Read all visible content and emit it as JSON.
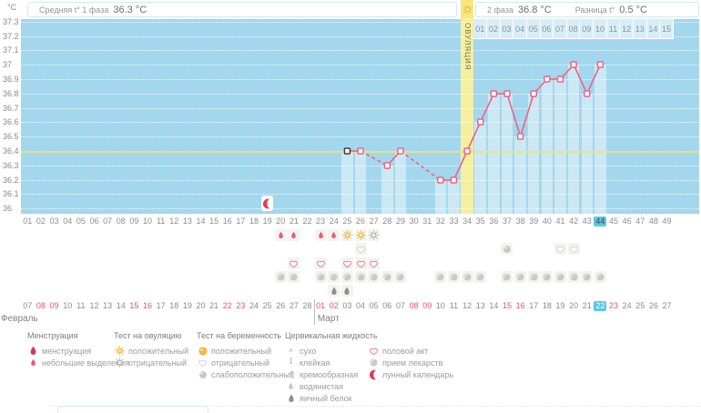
{
  "header": {
    "unit_label": "°C",
    "phase1": {
      "label": "Средняя t° 1 фаза",
      "value": "36.3 °C"
    },
    "phase2": {
      "label": "2 фаза",
      "value": "36.8 °C"
    },
    "diff": {
      "label": "Разница t°",
      "value": "0.5 °C"
    },
    "ovulation_label": "ОВУЛЯЦИЯ"
  },
  "colors": {
    "chart_bg": "#a3d7ed",
    "bar": "#cde9f7",
    "ovulation_band": "#f5efa0",
    "coverline": "#ece27a",
    "line": "#ee6286",
    "red_date": "#f0506e",
    "today_highlight": "#5cc5e9",
    "axis_text": "#8c8c8c"
  },
  "chart_data": {
    "type": "line",
    "ylabel": "°C",
    "ylim": [
      36.0,
      37.3
    ],
    "ytick_step": 0.1,
    "yticks": [
      "37.3",
      "37.2",
      "37.1",
      "37",
      "36.9",
      "36.8",
      "36.7",
      "36.6",
      "36.5",
      "36.4",
      "36.3",
      "36.2",
      "36.1",
      "36"
    ],
    "x_days": 49,
    "day_labels": [
      "01",
      "02",
      "03",
      "04",
      "05",
      "06",
      "07",
      "08",
      "09",
      "10",
      "11",
      "12",
      "13",
      "14",
      "15",
      "16",
      "17",
      "18",
      "19",
      "20",
      "21",
      "22",
      "23",
      "24",
      "25",
      "26",
      "27",
      "28",
      "29",
      "30",
      "31",
      "32",
      "33",
      "34",
      "35",
      "36",
      "37",
      "38",
      "39",
      "40",
      "41",
      "42",
      "43",
      "44",
      "45",
      "46",
      "47",
      "48",
      "49"
    ],
    "coverline_temp": 36.4,
    "ovulation_day": 34,
    "today_day": 44,
    "moon_day": 19,
    "points": [
      {
        "day": 25,
        "temp": 36.4,
        "first": true
      },
      {
        "day": 26,
        "temp": 36.4
      },
      {
        "day": 28,
        "temp": 36.3
      },
      {
        "day": 29,
        "temp": 36.4
      },
      {
        "day": 32,
        "temp": 36.2
      },
      {
        "day": 33,
        "temp": 36.2
      },
      {
        "day": 34,
        "temp": 36.4
      },
      {
        "day": 35,
        "temp": 36.6
      },
      {
        "day": 36,
        "temp": 36.8
      },
      {
        "day": 37,
        "temp": 36.8
      },
      {
        "day": 38,
        "temp": 36.5
      },
      {
        "day": 39,
        "temp": 36.8
      },
      {
        "day": 40,
        "temp": 36.9
      },
      {
        "day": 41,
        "temp": 36.9
      },
      {
        "day": 42,
        "temp": 37.0
      },
      {
        "day": 43,
        "temp": 36.8
      },
      {
        "day": 44,
        "temp": 37.0
      }
    ],
    "dashed_segments": [
      [
        26,
        28
      ],
      [
        29,
        32
      ]
    ],
    "bar_days": [
      25,
      26,
      28,
      29,
      32,
      33,
      35,
      36,
      37,
      38,
      39,
      40,
      41,
      42,
      43,
      44
    ],
    "dpo_labels": [
      "01",
      "02",
      "03",
      "04",
      "05",
      "06",
      "07",
      "08",
      "09",
      "10",
      "11",
      "12",
      "13",
      "14",
      "15"
    ]
  },
  "icon_rows": [
    {
      "name": "row-menses-ovulation-test",
      "cells": [
        {
          "day": 20,
          "icon": "spotting-icon"
        },
        {
          "day": 21,
          "icon": "spotting-icon"
        },
        {
          "day": 23,
          "icon": "spotting-icon"
        },
        {
          "day": 24,
          "icon": "spotting-icon"
        },
        {
          "day": 25,
          "icon": "ovulation-positive-icon"
        },
        {
          "day": 26,
          "icon": "ovulation-positive-icon"
        },
        {
          "day": 27,
          "icon": "ovulation-negative-icon"
        }
      ]
    },
    {
      "name": "row-pregnancy-test",
      "cells": [
        {
          "day": 26,
          "icon": "pregnancy-negative-icon"
        },
        {
          "day": 37,
          "icon": "pregnancy-weak-icon"
        },
        {
          "day": 41,
          "icon": "pregnancy-negative-icon"
        },
        {
          "day": 42,
          "icon": "pregnancy-negative-icon"
        }
      ]
    },
    {
      "name": "row-intercourse",
      "cells": [
        {
          "day": 21,
          "icon": "heart-icon"
        },
        {
          "day": 23,
          "icon": "heart-icon"
        },
        {
          "day": 25,
          "icon": "heart-icon"
        },
        {
          "day": 26,
          "icon": "heart-icon"
        },
        {
          "day": 27,
          "icon": "heart-icon"
        }
      ]
    },
    {
      "name": "row-medication",
      "cells": [
        {
          "day": 20,
          "icon": "pill-icon"
        },
        {
          "day": 21,
          "icon": "pill-icon"
        },
        {
          "day": 23,
          "icon": "pill-icon"
        },
        {
          "day": 24,
          "icon": "pill-icon"
        },
        {
          "day": 25,
          "icon": "pill-icon"
        },
        {
          "day": 26,
          "icon": "pill-icon"
        },
        {
          "day": 27,
          "icon": "pill-icon"
        },
        {
          "day": 28,
          "icon": "pill-icon"
        },
        {
          "day": 29,
          "icon": "pill-icon"
        },
        {
          "day": 32,
          "icon": "pill-icon"
        },
        {
          "day": 33,
          "icon": "pill-icon"
        },
        {
          "day": 34,
          "icon": "pill-icon"
        },
        {
          "day": 35,
          "icon": "pill-icon"
        },
        {
          "day": 37,
          "icon": "pill-icon"
        },
        {
          "day": 38,
          "icon": "pill-icon"
        },
        {
          "day": 39,
          "icon": "pill-icon"
        },
        {
          "day": 40,
          "icon": "pill-icon"
        },
        {
          "day": 41,
          "icon": "pill-icon"
        },
        {
          "day": 42,
          "icon": "pill-icon"
        },
        {
          "day": 43,
          "icon": "pill-icon"
        },
        {
          "day": 44,
          "icon": "pill-icon"
        }
      ]
    },
    {
      "name": "row-cervical-fluid",
      "cells": [
        {
          "day": 24,
          "icon": "eggwhite-icon"
        },
        {
          "day": 25,
          "icon": "eggwhite-icon"
        }
      ]
    }
  ],
  "dates": {
    "cells": [
      {
        "t": "07",
        "s": "n"
      },
      {
        "t": "08",
        "s": "r"
      },
      {
        "t": "09",
        "s": "r"
      },
      {
        "t": "10",
        "s": "n"
      },
      {
        "t": "11",
        "s": "n"
      },
      {
        "t": "12",
        "s": "n"
      },
      {
        "t": "13",
        "s": "n"
      },
      {
        "t": "14",
        "s": "n"
      },
      {
        "t": "15",
        "s": "r"
      },
      {
        "t": "16",
        "s": "r"
      },
      {
        "t": "17",
        "s": "n"
      },
      {
        "t": "18",
        "s": "n"
      },
      {
        "t": "19",
        "s": "n"
      },
      {
        "t": "20",
        "s": "n"
      },
      {
        "t": "21",
        "s": "n"
      },
      {
        "t": "22",
        "s": "r"
      },
      {
        "t": "23",
        "s": "r"
      },
      {
        "t": "24",
        "s": "n"
      },
      {
        "t": "25",
        "s": "n"
      },
      {
        "t": "26",
        "s": "n"
      },
      {
        "t": "27",
        "s": "n"
      },
      {
        "t": "28",
        "s": "n"
      },
      {
        "t": "01",
        "s": "r"
      },
      {
        "t": "02",
        "s": "r"
      },
      {
        "t": "03",
        "s": "n"
      },
      {
        "t": "04",
        "s": "n"
      },
      {
        "t": "05",
        "s": "n"
      },
      {
        "t": "06",
        "s": "n"
      },
      {
        "t": "07",
        "s": "n"
      },
      {
        "t": "08",
        "s": "r"
      },
      {
        "t": "09",
        "s": "r"
      },
      {
        "t": "10",
        "s": "n"
      },
      {
        "t": "11",
        "s": "n"
      },
      {
        "t": "12",
        "s": "n"
      },
      {
        "t": "13",
        "s": "n"
      },
      {
        "t": "14",
        "s": "n"
      },
      {
        "t": "15",
        "s": "r"
      },
      {
        "t": "16",
        "s": "r"
      },
      {
        "t": "17",
        "s": "n"
      },
      {
        "t": "18",
        "s": "n"
      },
      {
        "t": "19",
        "s": "n"
      },
      {
        "t": "20",
        "s": "n"
      },
      {
        "t": "21",
        "s": "n"
      },
      {
        "t": "22",
        "s": "h"
      },
      {
        "t": "23",
        "s": "r"
      },
      {
        "t": "24",
        "s": "n"
      },
      {
        "t": "25",
        "s": "n"
      },
      {
        "t": "26",
        "s": "n"
      },
      {
        "t": "27",
        "s": "n"
      }
    ],
    "month_break_index": 22,
    "months": [
      {
        "label": "Февраль"
      },
      {
        "label": "Март"
      }
    ]
  },
  "legend": {
    "groups": [
      {
        "title": "Менструация",
        "items": [
          {
            "icon": "menses-icon",
            "label": "менструация"
          },
          {
            "icon": "spotting-icon",
            "label": "небольшие выделения"
          }
        ]
      },
      {
        "title": "Тест на овуляцию",
        "items": [
          {
            "icon": "ovulation-positive-icon",
            "label": "положительный"
          },
          {
            "icon": "ovulation-negative-icon",
            "label": "отрицательный"
          }
        ]
      },
      {
        "title": "Тест на беременность",
        "items": [
          {
            "icon": "pregnancy-positive-icon",
            "label": "положительный"
          },
          {
            "icon": "pregnancy-negative-icon",
            "label": "отрицательный"
          },
          {
            "icon": "pregnancy-weak-icon",
            "label": "слабоположительный"
          }
        ]
      },
      {
        "title": "Цервикальная жидкость",
        "items": [
          {
            "icon": "dry-icon",
            "label": "сухо"
          },
          {
            "icon": "sticky-icon",
            "label": "клейкая"
          },
          {
            "icon": "creamy-icon",
            "label": "кремообразная"
          },
          {
            "icon": "watery-icon",
            "label": "водянистая"
          },
          {
            "icon": "eggwhite-icon",
            "label": "яичный белок"
          }
        ]
      },
      {
        "title": "",
        "items": [
          {
            "icon": "heart-icon",
            "label": "половой акт"
          },
          {
            "icon": "pill-icon",
            "label": "прием лекарств"
          },
          {
            "icon": "moon-icon",
            "label": "лунный календарь"
          }
        ]
      }
    ]
  }
}
